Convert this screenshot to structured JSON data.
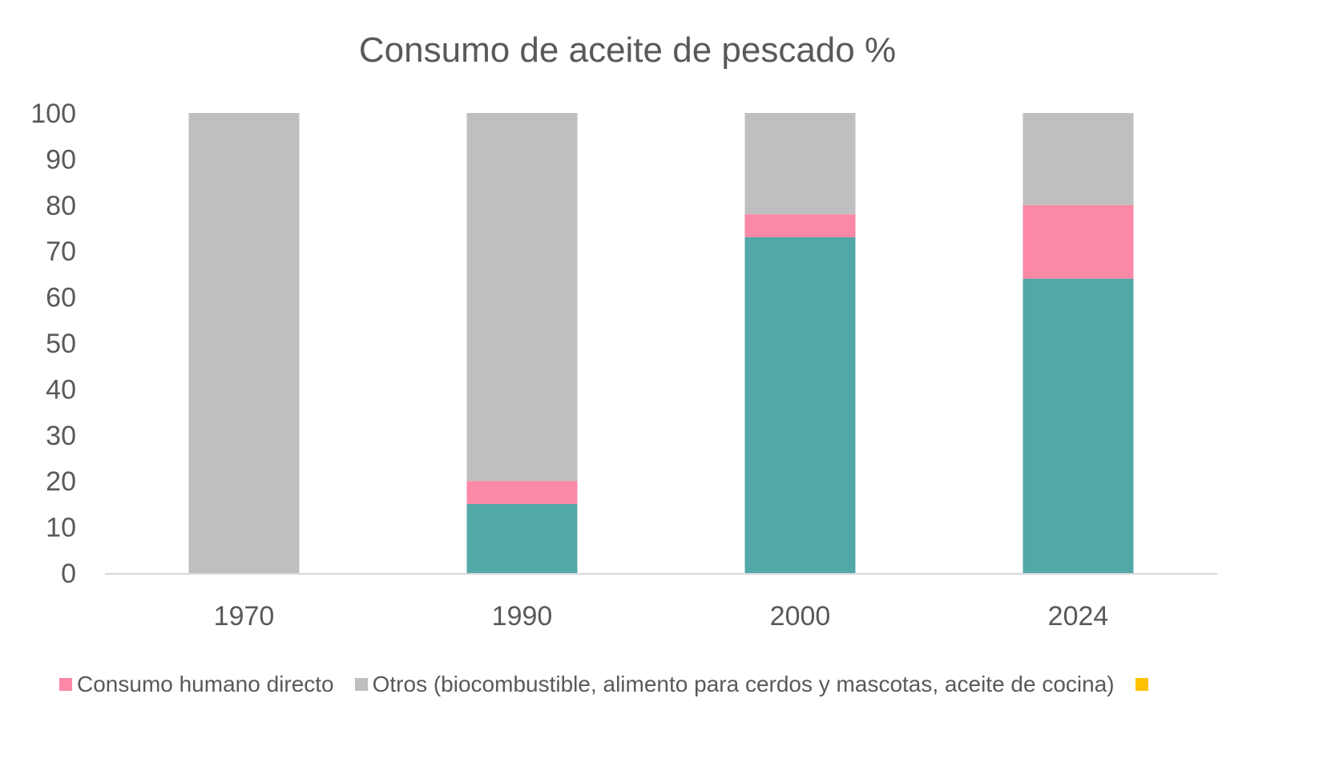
{
  "chart_data": {
    "type": "bar",
    "stacked": true,
    "title": "Consumo de aceite de pescado %",
    "xlabel": "",
    "ylabel": "",
    "categories": [
      "1970",
      "1990",
      "2000",
      "2024"
    ],
    "ylim": [
      0,
      100
    ],
    "yticks": [
      0,
      10,
      20,
      30,
      40,
      50,
      60,
      70,
      80,
      90,
      100
    ],
    "grid": false,
    "legend_position": "bottom",
    "series": [
      {
        "values": [
          0,
          15,
          73,
          64
        ],
        "color": "#52A8A7"
      },
      {
        "name": "Consumo humano directo",
        "values": [
          0,
          5,
          5,
          16
        ],
        "color": "#FB88A6"
      },
      {
        "name": "Otros (biocombustible, alimento para cerdos y mascotas, aceite de cocina)",
        "values": [
          100,
          80,
          22,
          20
        ],
        "color": "#BFBFBF"
      }
    ],
    "legend": [
      {
        "label": "Consumo humano directo",
        "color": "#FB88A6"
      },
      {
        "label": "Otros (biocombustible, alimento para cerdos y mascotas, aceite de cocina)",
        "color": "#BFBFBF"
      },
      {
        "label": "",
        "color": "#FFC000"
      }
    ]
  }
}
